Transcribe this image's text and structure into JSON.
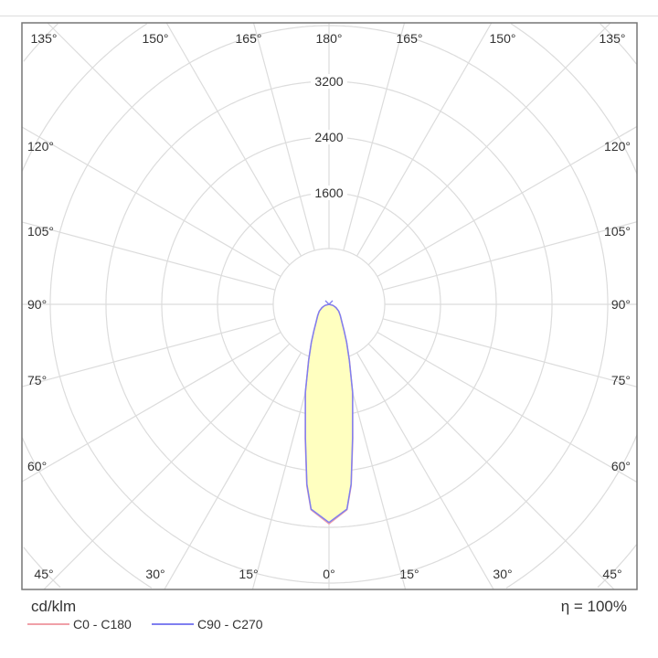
{
  "chart_data": {
    "type": "polar",
    "unit_label": "cd/klm",
    "efficiency_label": "η = 100%",
    "radial_ticks": [
      800,
      1600,
      2400,
      3200,
      4000,
      4800,
      5600,
      6400
    ],
    "radial_tick_labels": [
      "1600",
      "2400",
      "3200"
    ],
    "angle_step_deg": 15,
    "angle_labels": {
      "top": [
        "135°",
        "150°",
        "165°",
        "180°",
        "165°",
        "150°",
        "135°"
      ],
      "left": [
        "120°",
        "105°",
        "90°",
        "75°",
        "60°"
      ],
      "right": [
        "120°",
        "105°",
        "90°",
        "75°",
        "60°"
      ],
      "bottom": [
        "45°",
        "30°",
        "15°",
        "0°",
        "15°",
        "30°",
        "45°"
      ]
    },
    "grid": true,
    "legend_placement": "bottom-left",
    "gamma_deg": [
      0,
      5,
      7,
      10,
      15,
      20,
      25,
      30,
      35,
      45,
      55,
      65,
      75,
      90
    ],
    "series": [
      {
        "name": "C0 - C180",
        "color": "#f0a0a8",
        "values": [
          3150,
          2960,
          2620,
          1960,
          1300,
          860,
          600,
          430,
          330,
          230,
          170,
          110,
          60,
          0
        ]
      },
      {
        "name": "C90 - C270",
        "color": "#7f7ff0",
        "values": [
          3130,
          2950,
          2600,
          1950,
          1310,
          850,
          600,
          430,
          330,
          230,
          170,
          110,
          60,
          0
        ]
      }
    ],
    "fill_color": "#ffffc0"
  }
}
